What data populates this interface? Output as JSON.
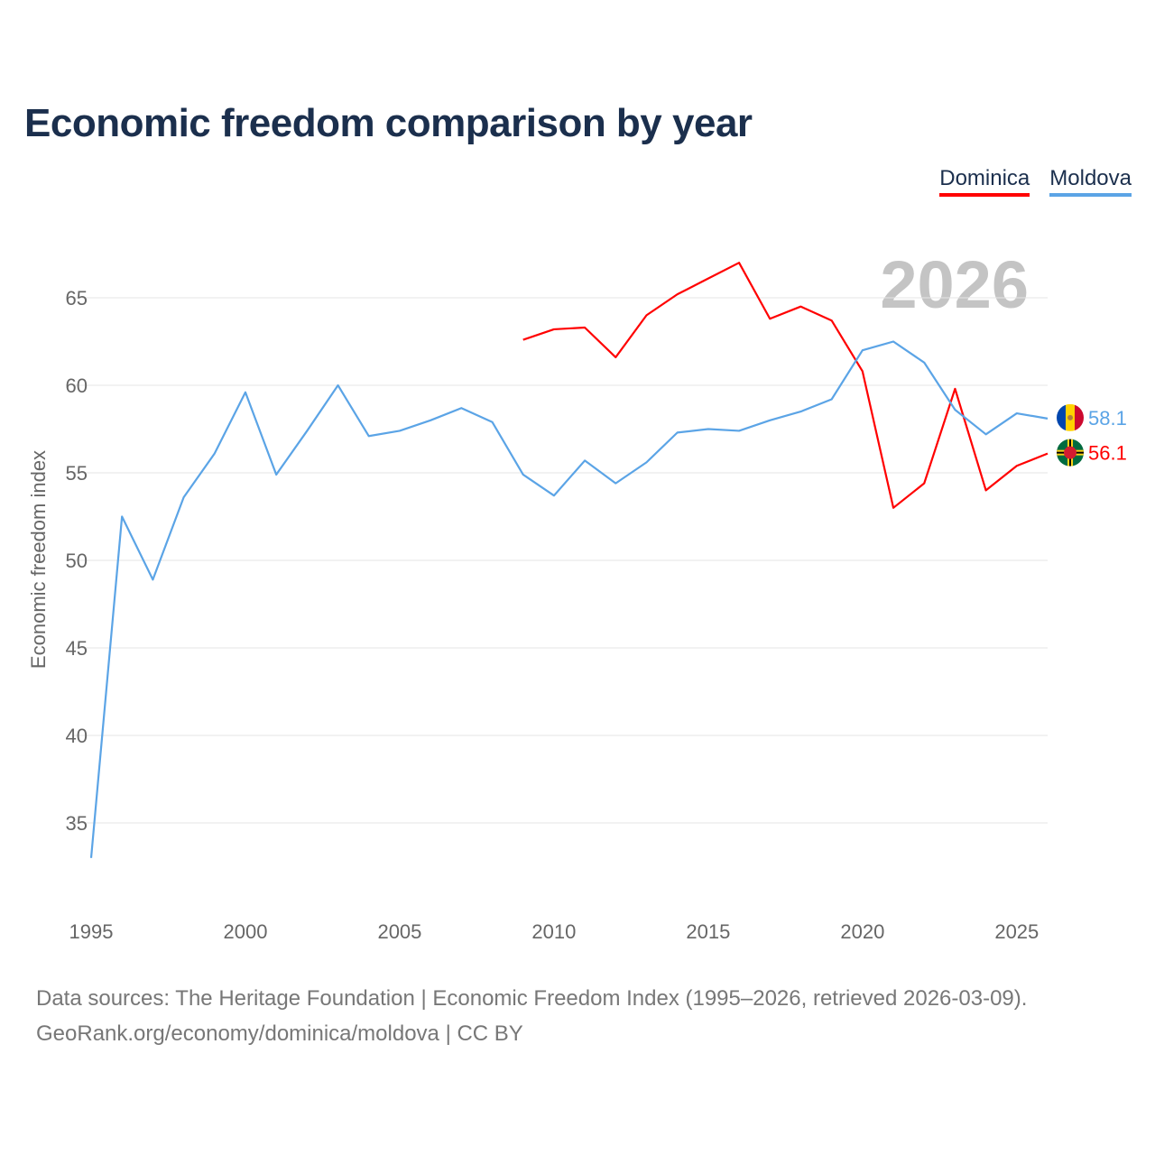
{
  "title": "Economic freedom comparison by year",
  "legend": [
    {
      "name": "Dominica",
      "color": "#ff0000"
    },
    {
      "name": "Moldova",
      "color": "#5ba4e6"
    }
  ],
  "year_watermark": "2026",
  "footer": {
    "line1": "Data sources: The Heritage Foundation | Economic Freedom Index (1995–2026, retrieved 2026-03-09).",
    "line2": "GeoRank.org/economy/dominica/moldova | CC BY"
  },
  "chart_data": {
    "type": "line",
    "title": "Economic freedom comparison by year",
    "xlabel": "",
    "ylabel": "Economic freedom index",
    "xlim": [
      1995,
      2026
    ],
    "ylim": [
      35,
      65
    ],
    "xticks": [
      1995,
      2000,
      2005,
      2010,
      2015,
      2020,
      2025
    ],
    "yticks": [
      35,
      40,
      45,
      50,
      55,
      60,
      65
    ],
    "grid": true,
    "legend_position": "top-right",
    "series": [
      {
        "name": "Dominica",
        "color": "#ff0000",
        "end_label": "56.1",
        "x": [
          2009,
          2010,
          2011,
          2012,
          2013,
          2014,
          2015,
          2016,
          2017,
          2018,
          2019,
          2020,
          2021,
          2022,
          2023,
          2024,
          2025,
          2026
        ],
        "values": [
          62.6,
          63.2,
          63.3,
          61.6,
          64.0,
          65.2,
          66.1,
          67.0,
          63.8,
          64.5,
          63.7,
          60.8,
          53.0,
          54.4,
          59.8,
          54.0,
          55.4,
          56.1
        ]
      },
      {
        "name": "Moldova",
        "color": "#5ba4e6",
        "end_label": "58.1",
        "x": [
          1995,
          1996,
          1997,
          1998,
          1999,
          2000,
          2001,
          2002,
          2003,
          2004,
          2005,
          2006,
          2007,
          2008,
          2009,
          2010,
          2011,
          2012,
          2013,
          2014,
          2015,
          2016,
          2017,
          2018,
          2019,
          2020,
          2021,
          2022,
          2023,
          2024,
          2025,
          2026
        ],
        "values": [
          33.0,
          52.5,
          48.9,
          53.6,
          56.1,
          59.6,
          54.9,
          57.4,
          60.0,
          57.1,
          57.4,
          58.0,
          58.7,
          57.9,
          54.9,
          53.7,
          55.7,
          54.4,
          55.6,
          57.3,
          57.5,
          57.4,
          58.0,
          58.5,
          59.2,
          62.0,
          62.5,
          61.3,
          58.6,
          57.2,
          58.4,
          58.1
        ]
      }
    ]
  }
}
